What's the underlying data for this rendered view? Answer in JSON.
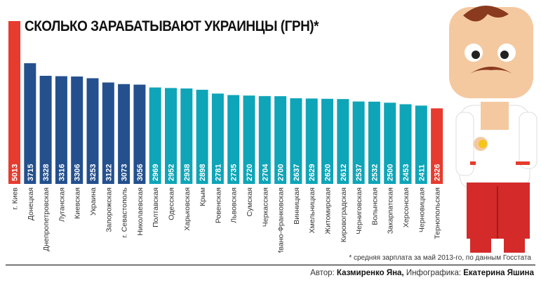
{
  "chart_data": {
    "type": "bar",
    "title": "СКОЛЬКО ЗАРАБАТЫВАЮТ УКРАИНЦЫ (ГРН)*",
    "categories": [
      "г. Киев",
      "Донецкая",
      "Днепропетровская",
      "Луганская",
      "Киевская",
      "Украина",
      "Запорожская",
      "г. Севастополь",
      "Николаевская",
      "Полтавская",
      "Одесская",
      "Харьковская",
      "Крым",
      "Ровенская",
      "Львовская",
      "Сумская",
      "Черкасская",
      "Ивано-Франковская",
      "Винницкая",
      "Хмельницкая",
      "Житомирская",
      "Кировоградская",
      "Черниговская",
      "Волынская",
      "Закарпатская",
      "Херсонская",
      "Черновицкая",
      "Тернопольская"
    ],
    "values": [
      5013,
      3715,
      3328,
      3316,
      3306,
      3253,
      3122,
      3073,
      3056,
      2969,
      2952,
      2938,
      2898,
      2781,
      2735,
      2720,
      2704,
      2700,
      2637,
      2629,
      2620,
      2612,
      2537,
      2532,
      2500,
      2453,
      2411,
      2326
    ],
    "colors": [
      "#e63b2e",
      "#24508e",
      "#24508e",
      "#24508e",
      "#24508e",
      "#24508e",
      "#24508e",
      "#24508e",
      "#24508e",
      "#0fa5b8",
      "#0fa5b8",
      "#0fa5b8",
      "#0fa5b8",
      "#0fa5b8",
      "#0fa5b8",
      "#0fa5b8",
      "#0fa5b8",
      "#0fa5b8",
      "#0fa5b8",
      "#0fa5b8",
      "#0fa5b8",
      "#0fa5b8",
      "#0fa5b8",
      "#0fa5b8",
      "#0fa5b8",
      "#0fa5b8",
      "#0fa5b8",
      "#e63b2e"
    ],
    "ylim": [
      0,
      5013
    ]
  },
  "note": "* средняя зарплата за май 2013-го, по данным Госстата",
  "credit": {
    "author_label": "Автор: ",
    "author": "Казмиренко Яна,",
    "infographic_label": " Инфографика: ",
    "infographic": "Екатерина Яшина"
  }
}
